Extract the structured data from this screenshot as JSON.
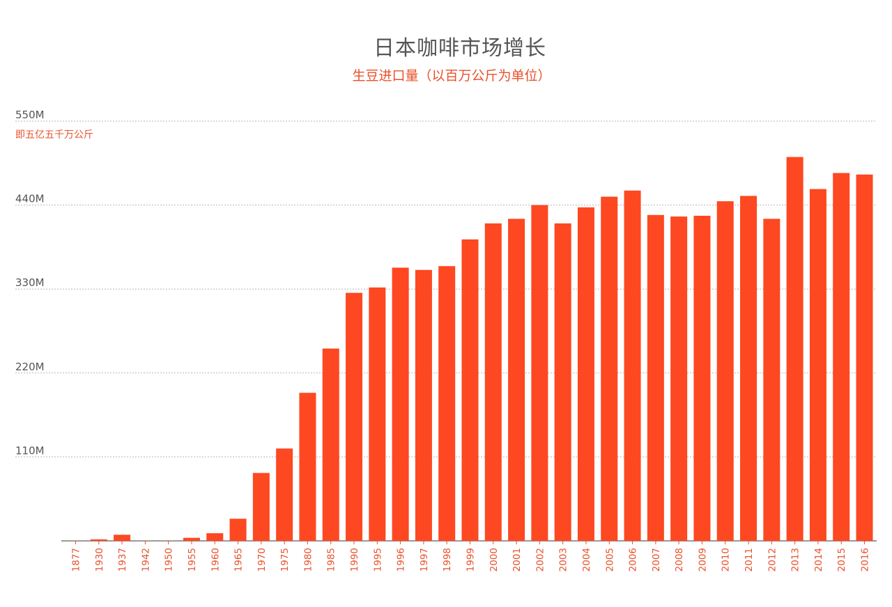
{
  "chart_data": {
    "type": "bar",
    "title": "日本咖啡市场增长",
    "subtitle": "生豆进口量（以百万公斤为单位）",
    "unit_note": "即五亿五千万公斤",
    "xlabel": "",
    "ylabel": "",
    "ylim": [
      0,
      550
    ],
    "yticks": [
      {
        "value": 110,
        "label": "110M"
      },
      {
        "value": 220,
        "label": "220M"
      },
      {
        "value": 330,
        "label": "330M"
      },
      {
        "value": 440,
        "label": "440M"
      },
      {
        "value": 550,
        "label": "550M"
      }
    ],
    "grid": true,
    "color": "#fd4821",
    "categories": [
      "1877",
      "1930",
      "1937",
      "1942",
      "1950",
      "1955",
      "1960",
      "1965",
      "1970",
      "1975",
      "1980",
      "1985",
      "1990",
      "1995",
      "1996",
      "1997",
      "1998",
      "1999",
      "2000",
      "2001",
      "2002",
      "2003",
      "2004",
      "2005",
      "2006",
      "2007",
      "2008",
      "2009",
      "2010",
      "2011",
      "2012",
      "2013",
      "2014",
      "2015",
      "2016"
    ],
    "values": [
      0.1,
      2,
      8,
      0.1,
      0.1,
      4,
      10,
      29,
      89,
      121,
      194,
      252,
      325,
      332,
      358,
      355,
      360,
      395,
      416,
      422,
      440,
      416,
      437,
      451,
      459,
      427,
      425,
      426,
      445,
      452,
      422,
      503,
      461,
      482,
      480
    ]
  }
}
